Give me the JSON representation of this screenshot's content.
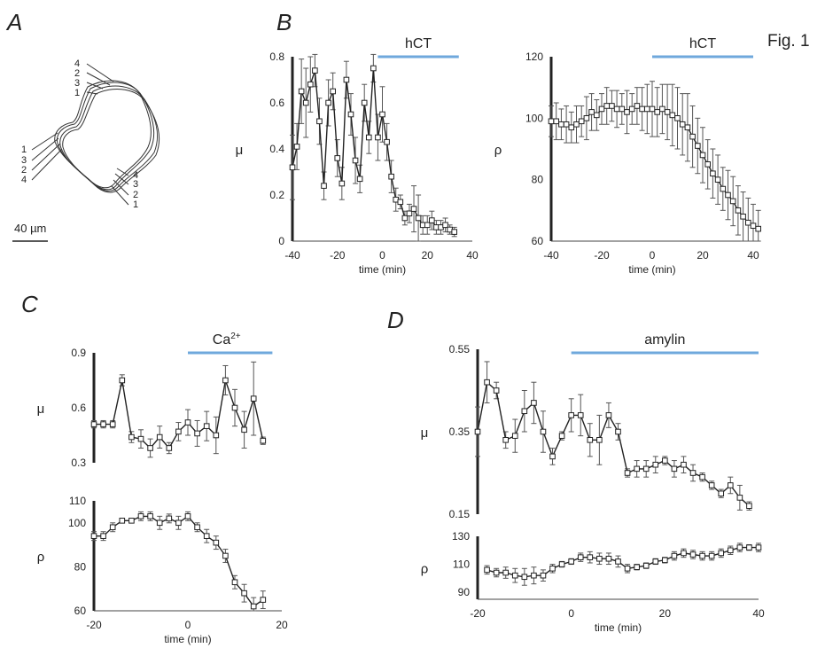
{
  "figure_label": "Fig. 1",
  "panel_letters": {
    "A": "A",
    "B": "B",
    "C": "C",
    "D": "D"
  },
  "scale_bar_label": "40 µm",
  "outline_labels": {
    "top": [
      "4",
      "2",
      "3",
      "1"
    ],
    "left": [
      "1",
      "3",
      "2",
      "4"
    ],
    "right": [
      "4",
      "3",
      "2",
      "1"
    ]
  },
  "colors": {
    "treatment_bar": "#6fa8dc",
    "line": "#222222"
  },
  "chart_data": [
    {
      "id": "B_mu",
      "type": "line",
      "treatment": "hCT",
      "ylabel": "μ",
      "xlabel": "time (min)",
      "xlim": [
        -40,
        40
      ],
      "ylim": [
        0,
        0.8
      ],
      "xticks": [
        -40,
        -20,
        0,
        20,
        40
      ],
      "yticks": [
        0,
        0.2,
        0.4,
        0.6,
        0.8
      ],
      "treatment_range": [
        -2,
        34
      ],
      "show_xlabel": true,
      "show_xticks": true,
      "x": [
        -40,
        -38,
        -36,
        -34,
        -32,
        -30,
        -28,
        -26,
        -24,
        -22,
        -20,
        -18,
        -16,
        -14,
        -12,
        -10,
        -8,
        -6,
        -4,
        -2,
        0,
        2,
        4,
        6,
        8,
        10,
        12,
        14,
        16,
        18,
        20,
        22,
        24,
        26,
        28,
        30,
        32
      ],
      "y": [
        0.32,
        0.41,
        0.65,
        0.6,
        0.68,
        0.74,
        0.52,
        0.24,
        0.6,
        0.65,
        0.36,
        0.25,
        0.7,
        0.55,
        0.35,
        0.27,
        0.6,
        0.45,
        0.75,
        0.45,
        0.55,
        0.43,
        0.28,
        0.18,
        0.17,
        0.1,
        0.12,
        0.14,
        0.1,
        0.07,
        0.07,
        0.09,
        0.06,
        0.06,
        0.07,
        0.05,
        0.04
      ],
      "err": [
        0.14,
        0.1,
        0.14,
        0.15,
        0.12,
        0.07,
        0.1,
        0.06,
        0.1,
        0.08,
        0.08,
        0.07,
        0.08,
        0.09,
        0.1,
        0.06,
        0.08,
        0.07,
        0.06,
        0.1,
        0.12,
        0.08,
        0.07,
        0.05,
        0.03,
        0.03,
        0.04,
        0.1,
        0.1,
        0.04,
        0.04,
        0.04,
        0.03,
        0.03,
        0.03,
        0.02,
        0.02
      ]
    },
    {
      "id": "B_rho",
      "type": "line",
      "treatment": "hCT",
      "ylabel": "ρ",
      "xlabel": "time (min)",
      "xlim": [
        -40,
        40
      ],
      "ylim": [
        60,
        120
      ],
      "xticks": [
        -40,
        -20,
        0,
        20,
        40
      ],
      "yticks": [
        60,
        80,
        100,
        120
      ],
      "treatment_range": [
        0,
        40
      ],
      "show_xlabel": true,
      "show_xticks": true,
      "x": [
        -40,
        -38,
        -36,
        -34,
        -32,
        -30,
        -28,
        -26,
        -24,
        -22,
        -20,
        -18,
        -16,
        -14,
        -12,
        -10,
        -8,
        -6,
        -4,
        -2,
        0,
        2,
        4,
        6,
        8,
        10,
        12,
        14,
        16,
        18,
        20,
        22,
        24,
        26,
        28,
        30,
        32,
        34,
        36,
        38,
        40,
        42
      ],
      "y": [
        99,
        99,
        98,
        98,
        97,
        98,
        99,
        100,
        102,
        101,
        103,
        104,
        104,
        103,
        103,
        102,
        103,
        104,
        103,
        103,
        103,
        102,
        103,
        102,
        101,
        100,
        98,
        97,
        94,
        91,
        88,
        85,
        82,
        80,
        77,
        75,
        73,
        70,
        68,
        66,
        65,
        64
      ],
      "err": [
        5,
        6,
        5,
        6,
        5,
        6,
        5,
        7,
        6,
        5,
        5,
        6,
        5,
        6,
        5,
        7,
        5,
        6,
        7,
        8,
        9,
        8,
        8,
        9,
        10,
        10,
        10,
        11,
        10,
        9,
        9,
        8,
        8,
        8,
        7,
        8,
        8,
        8,
        8,
        8,
        7,
        6
      ]
    },
    {
      "id": "C_mu",
      "type": "line",
      "treatment": "Ca2+",
      "ylabel": "μ",
      "xlabel": "",
      "xlim": [
        -20,
        20
      ],
      "ylim": [
        0.3,
        0.9
      ],
      "xticks": [],
      "yticks": [
        0.3,
        0.6,
        0.9
      ],
      "treatment_range": [
        0,
        18
      ],
      "show_xlabel": false,
      "show_xticks": false,
      "x": [
        -20,
        -18,
        -16,
        -14,
        -12,
        -10,
        -8,
        -6,
        -4,
        -2,
        0,
        2,
        4,
        6,
        8,
        10,
        12,
        14,
        16
      ],
      "y": [
        0.51,
        0.51,
        0.51,
        0.75,
        0.44,
        0.43,
        0.38,
        0.44,
        0.38,
        0.47,
        0.52,
        0.46,
        0.5,
        0.45,
        0.75,
        0.6,
        0.48,
        0.65,
        0.42
      ],
      "err": [
        0.02,
        0.02,
        0.02,
        0.03,
        0.03,
        0.05,
        0.05,
        0.06,
        0.03,
        0.05,
        0.07,
        0.07,
        0.08,
        0.1,
        0.08,
        0.1,
        0.1,
        0.2,
        0.02
      ]
    },
    {
      "id": "C_rho",
      "type": "line",
      "treatment": "",
      "ylabel": "ρ",
      "xlabel": "time (min)",
      "xlim": [
        -20,
        20
      ],
      "ylim": [
        60,
        110
      ],
      "xticks": [
        -20,
        0,
        20
      ],
      "yticks": [
        60,
        80,
        100,
        110
      ],
      "treatment_range": null,
      "show_xlabel": true,
      "show_xticks": true,
      "x": [
        -20,
        -18,
        -16,
        -14,
        -12,
        -10,
        -8,
        -6,
        -4,
        -2,
        0,
        2,
        4,
        6,
        8,
        10,
        12,
        14,
        16
      ],
      "y": [
        94,
        94,
        98,
        101,
        101,
        103,
        103,
        100,
        102,
        100,
        103,
        98,
        94,
        91,
        85,
        73,
        68,
        62,
        65
      ],
      "err": [
        2,
        2,
        2,
        1,
        1,
        2,
        2,
        3,
        2,
        3,
        2,
        2,
        3,
        3,
        3,
        3,
        4,
        4,
        4
      ]
    },
    {
      "id": "D_mu",
      "type": "line",
      "treatment": "amylin",
      "ylabel": "μ",
      "xlabel": "",
      "xlim": [
        -20,
        40
      ],
      "ylim": [
        0.15,
        0.55
      ],
      "xticks": [],
      "yticks": [
        0.15,
        0.35,
        0.55
      ],
      "treatment_range": [
        0,
        40
      ],
      "show_xlabel": false,
      "show_xticks": false,
      "x": [
        -20,
        -18,
        -16,
        -14,
        -12,
        -10,
        -8,
        -6,
        -4,
        -2,
        0,
        2,
        4,
        6,
        8,
        10,
        12,
        14,
        16,
        18,
        20,
        22,
        24,
        26,
        28,
        30,
        32,
        34,
        36,
        38
      ],
      "y": [
        0.35,
        0.47,
        0.45,
        0.33,
        0.34,
        0.4,
        0.42,
        0.35,
        0.29,
        0.34,
        0.39,
        0.39,
        0.33,
        0.33,
        0.39,
        0.35,
        0.25,
        0.26,
        0.26,
        0.27,
        0.28,
        0.26,
        0.27,
        0.25,
        0.24,
        0.22,
        0.2,
        0.22,
        0.19,
        0.17
      ],
      "err": [
        0.06,
        0.05,
        0.02,
        0.02,
        0.04,
        0.05,
        0.05,
        0.05,
        0.02,
        0.01,
        0.04,
        0.05,
        0.04,
        0.06,
        0.03,
        0.02,
        0.01,
        0.02,
        0.02,
        0.02,
        0.01,
        0.02,
        0.02,
        0.02,
        0.01,
        0.01,
        0.01,
        0.02,
        0.03,
        0.01
      ]
    },
    {
      "id": "D_rho",
      "type": "line",
      "treatment": "",
      "ylabel": "ρ",
      "xlabel": "time (min)",
      "xlim": [
        -20,
        40
      ],
      "ylim": [
        85,
        130
      ],
      "xticks": [
        -20,
        0,
        20,
        40
      ],
      "yticks": [
        90,
        110,
        130
      ],
      "treatment_range": null,
      "show_xlabel": true,
      "show_xticks": true,
      "x": [
        -18,
        -16,
        -14,
        -12,
        -10,
        -8,
        -6,
        -4,
        -2,
        0,
        2,
        4,
        6,
        8,
        10,
        12,
        14,
        16,
        18,
        20,
        22,
        24,
        26,
        28,
        30,
        32,
        34,
        36,
        38,
        40
      ],
      "y": [
        106,
        104,
        104,
        102,
        101,
        102,
        102,
        107,
        110,
        112,
        115,
        115,
        114,
        114,
        112,
        107,
        108,
        109,
        112,
        113,
        116,
        118,
        117,
        116,
        116,
        118,
        120,
        122,
        122,
        122
      ],
      "err": [
        3,
        3,
        4,
        5,
        6,
        6,
        4,
        3,
        2,
        2,
        3,
        4,
        4,
        4,
        4,
        3,
        2,
        2,
        2,
        2,
        3,
        3,
        3,
        3,
        3,
        3,
        3,
        3,
        2,
        3
      ]
    }
  ]
}
